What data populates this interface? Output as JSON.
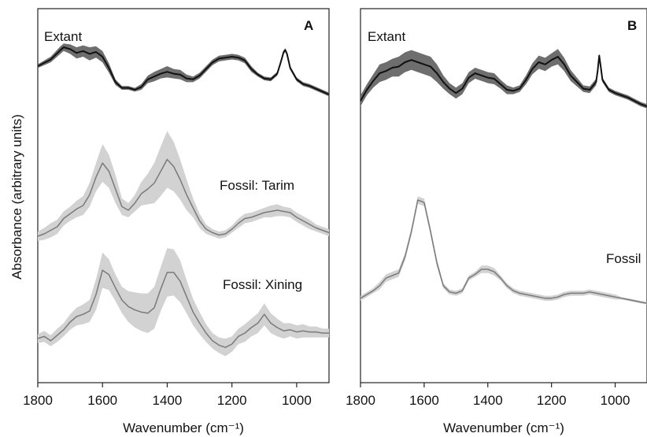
{
  "figure": {
    "ylabel": "Absorbance (arbitrary units)"
  },
  "chart_data": [
    {
      "type": "line",
      "panel_label": "A",
      "xlabel": "Wavenumber (cm⁻¹)",
      "xlim": [
        1800,
        900
      ],
      "xticks": [
        1800,
        1600,
        1400,
        1200,
        1000
      ],
      "grid": false,
      "annotations": [
        "Extant",
        "Fossil: Tarim",
        "Fossil: Xining"
      ],
      "series": [
        {
          "name": "Extant",
          "color": "#111111",
          "band_color": "#6e6e6e",
          "x": [
            1800,
            1760,
            1730,
            1720,
            1700,
            1680,
            1660,
            1640,
            1620,
            1600,
            1580,
            1560,
            1540,
            1520,
            1500,
            1480,
            1460,
            1440,
            1420,
            1400,
            1380,
            1360,
            1340,
            1320,
            1300,
            1280,
            1260,
            1240,
            1220,
            1200,
            1180,
            1160,
            1140,
            1120,
            1100,
            1080,
            1060,
            1050,
            1040,
            1035,
            1030,
            1020,
            1000,
            980,
            960,
            940,
            920,
            900
          ],
          "y": [
            0.8,
            0.87,
            0.97,
            1.0,
            0.98,
            0.94,
            0.96,
            0.93,
            0.95,
            0.9,
            0.78,
            0.63,
            0.57,
            0.57,
            0.55,
            0.58,
            0.66,
            0.69,
            0.72,
            0.74,
            0.72,
            0.71,
            0.67,
            0.66,
            0.7,
            0.77,
            0.84,
            0.88,
            0.89,
            0.9,
            0.89,
            0.86,
            0.77,
            0.71,
            0.67,
            0.66,
            0.72,
            0.83,
            0.95,
            0.97,
            0.93,
            0.78,
            0.66,
            0.61,
            0.59,
            0.56,
            0.53,
            0.5
          ],
          "spread": [
            0.02,
            0.03,
            0.04,
            0.04,
            0.05,
            0.06,
            0.06,
            0.07,
            0.06,
            0.06,
            0.05,
            0.03,
            0.02,
            0.02,
            0.02,
            0.03,
            0.04,
            0.05,
            0.05,
            0.06,
            0.05,
            0.05,
            0.04,
            0.03,
            0.03,
            0.03,
            0.03,
            0.03,
            0.03,
            0.03,
            0.03,
            0.03,
            0.03,
            0.02,
            0.02,
            0.02,
            0.02,
            0.02,
            0.02,
            0.02,
            0.02,
            0.02,
            0.02,
            0.02,
            0.02,
            0.02,
            0.02,
            0.02
          ]
        },
        {
          "name": "Fossil: Tarim",
          "color": "#7a7a7a",
          "band_color": "#d2d2d2",
          "x": [
            1800,
            1780,
            1760,
            1740,
            1720,
            1700,
            1680,
            1660,
            1640,
            1620,
            1600,
            1580,
            1560,
            1540,
            1520,
            1500,
            1480,
            1460,
            1440,
            1420,
            1400,
            1380,
            1360,
            1340,
            1320,
            1300,
            1280,
            1260,
            1240,
            1220,
            1200,
            1180,
            1160,
            1140,
            1120,
            1100,
            1080,
            1060,
            1040,
            1020,
            1000,
            980,
            960,
            940,
            920,
            900
          ],
          "y": [
            0.0,
            0.02,
            0.05,
            0.08,
            0.15,
            0.19,
            0.23,
            0.26,
            0.35,
            0.5,
            0.62,
            0.55,
            0.4,
            0.25,
            0.22,
            0.28,
            0.36,
            0.4,
            0.45,
            0.55,
            0.65,
            0.59,
            0.48,
            0.35,
            0.24,
            0.13,
            0.06,
            0.03,
            0.01,
            0.02,
            0.06,
            0.11,
            0.15,
            0.16,
            0.18,
            0.2,
            0.21,
            0.22,
            0.21,
            0.2,
            0.16,
            0.13,
            0.1,
            0.07,
            0.05,
            0.03
          ],
          "spread": [
            0.04,
            0.05,
            0.06,
            0.06,
            0.06,
            0.06,
            0.07,
            0.08,
            0.1,
            0.12,
            0.16,
            0.14,
            0.12,
            0.07,
            0.06,
            0.07,
            0.1,
            0.13,
            0.17,
            0.21,
            0.24,
            0.21,
            0.17,
            0.13,
            0.08,
            0.06,
            0.04,
            0.03,
            0.03,
            0.03,
            0.03,
            0.04,
            0.04,
            0.04,
            0.04,
            0.04,
            0.05,
            0.05,
            0.04,
            0.04,
            0.04,
            0.04,
            0.04,
            0.03,
            0.03,
            0.03
          ]
        },
        {
          "name": "Fossil: Xining",
          "color": "#7a7a7a",
          "band_color": "#d2d2d2",
          "x": [
            1800,
            1780,
            1760,
            1740,
            1720,
            1700,
            1680,
            1660,
            1640,
            1620,
            1600,
            1580,
            1560,
            1540,
            1520,
            1500,
            1480,
            1460,
            1440,
            1420,
            1400,
            1380,
            1360,
            1340,
            1320,
            1300,
            1280,
            1260,
            1240,
            1220,
            1200,
            1180,
            1160,
            1140,
            1120,
            1100,
            1080,
            1060,
            1040,
            1020,
            1000,
            980,
            960,
            940,
            920,
            900
          ],
          "y": [
            0.0,
            0.02,
            -0.02,
            0.03,
            0.08,
            0.15,
            0.2,
            0.22,
            0.25,
            0.4,
            0.62,
            0.58,
            0.46,
            0.35,
            0.29,
            0.26,
            0.24,
            0.23,
            0.28,
            0.45,
            0.6,
            0.6,
            0.52,
            0.38,
            0.24,
            0.14,
            0.05,
            -0.02,
            -0.06,
            -0.08,
            -0.05,
            0.02,
            0.05,
            0.1,
            0.14,
            0.22,
            0.14,
            0.1,
            0.07,
            0.08,
            0.06,
            0.07,
            0.06,
            0.06,
            0.05,
            0.05
          ],
          "spread": [
            0.04,
            0.05,
            0.05,
            0.06,
            0.06,
            0.07,
            0.08,
            0.09,
            0.1,
            0.14,
            0.16,
            0.14,
            0.12,
            0.12,
            0.14,
            0.16,
            0.17,
            0.18,
            0.19,
            0.2,
            0.22,
            0.21,
            0.19,
            0.15,
            0.12,
            0.1,
            0.08,
            0.07,
            0.07,
            0.08,
            0.07,
            0.07,
            0.08,
            0.08,
            0.09,
            0.1,
            0.09,
            0.08,
            0.07,
            0.06,
            0.06,
            0.06,
            0.05,
            0.05,
            0.04,
            0.04
          ]
        }
      ]
    },
    {
      "type": "line",
      "panel_label": "B",
      "xlabel": "Wavenumber (cm⁻¹)",
      "xlim": [
        1800,
        900
      ],
      "xticks": [
        1800,
        1600,
        1400,
        1200,
        1000
      ],
      "grid": false,
      "annotations": [
        "Extant",
        "Fossil"
      ],
      "series": [
        {
          "name": "Extant",
          "color": "#111111",
          "band_color": "#6e6e6e",
          "x": [
            1800,
            1780,
            1760,
            1740,
            1720,
            1700,
            1680,
            1660,
            1640,
            1620,
            1600,
            1580,
            1560,
            1540,
            1520,
            1500,
            1480,
            1460,
            1440,
            1420,
            1400,
            1380,
            1360,
            1340,
            1320,
            1300,
            1280,
            1260,
            1240,
            1220,
            1200,
            1180,
            1160,
            1140,
            1120,
            1100,
            1080,
            1060,
            1055,
            1050,
            1045,
            1040,
            1020,
            1000,
            980,
            960,
            940,
            920,
            900
          ],
          "y": [
            0.55,
            0.65,
            0.73,
            0.8,
            0.82,
            0.85,
            0.86,
            0.9,
            0.92,
            0.9,
            0.88,
            0.86,
            0.8,
            0.72,
            0.66,
            0.62,
            0.66,
            0.76,
            0.8,
            0.78,
            0.76,
            0.75,
            0.7,
            0.65,
            0.64,
            0.66,
            0.74,
            0.84,
            0.9,
            0.88,
            0.92,
            0.95,
            0.88,
            0.78,
            0.72,
            0.66,
            0.65,
            0.72,
            0.82,
            0.96,
            0.85,
            0.74,
            0.65,
            0.62,
            0.6,
            0.58,
            0.55,
            0.52,
            0.5
          ],
          "spread": [
            0.05,
            0.05,
            0.06,
            0.08,
            0.08,
            0.08,
            0.09,
            0.09,
            0.09,
            0.09,
            0.09,
            0.09,
            0.08,
            0.06,
            0.05,
            0.05,
            0.05,
            0.05,
            0.05,
            0.05,
            0.05,
            0.05,
            0.04,
            0.04,
            0.03,
            0.03,
            0.04,
            0.05,
            0.06,
            0.06,
            0.06,
            0.07,
            0.06,
            0.05,
            0.04,
            0.03,
            0.03,
            0.03,
            0.03,
            0.02,
            0.02,
            0.02,
            0.02,
            0.02,
            0.02,
            0.02,
            0.02,
            0.02,
            0.02
          ]
        },
        {
          "name": "Fossil",
          "color": "#7a7a7a",
          "band_color": "#d2d2d2",
          "x": [
            1800,
            1780,
            1760,
            1740,
            1720,
            1700,
            1680,
            1660,
            1640,
            1620,
            1600,
            1580,
            1560,
            1540,
            1520,
            1500,
            1480,
            1460,
            1440,
            1420,
            1400,
            1380,
            1360,
            1340,
            1320,
            1300,
            1280,
            1260,
            1240,
            1220,
            1200,
            1180,
            1160,
            1140,
            1120,
            1100,
            1080,
            1060,
            1040,
            1020,
            1000,
            980,
            960,
            940,
            920,
            900
          ],
          "y": [
            0.02,
            0.05,
            0.08,
            0.12,
            0.18,
            0.2,
            0.22,
            0.35,
            0.55,
            0.8,
            0.78,
            0.55,
            0.3,
            0.12,
            0.07,
            0.06,
            0.08,
            0.18,
            0.21,
            0.25,
            0.25,
            0.23,
            0.18,
            0.12,
            0.08,
            0.06,
            0.05,
            0.04,
            0.03,
            0.02,
            0.02,
            0.03,
            0.05,
            0.06,
            0.06,
            0.06,
            0.07,
            0.06,
            0.05,
            0.04,
            0.03,
            0.02,
            0.01,
            0.0,
            -0.01,
            -0.02
          ],
          "spread": [
            0.02,
            0.02,
            0.02,
            0.03,
            0.03,
            0.03,
            0.03,
            0.03,
            0.03,
            0.03,
            0.03,
            0.03,
            0.03,
            0.02,
            0.02,
            0.02,
            0.02,
            0.02,
            0.02,
            0.03,
            0.03,
            0.03,
            0.02,
            0.02,
            0.02,
            0.02,
            0.02,
            0.02,
            0.02,
            0.02,
            0.02,
            0.02,
            0.02,
            0.02,
            0.02,
            0.02,
            0.02,
            0.02,
            0.02,
            0.02,
            0.02,
            0.01,
            0.01,
            0.01,
            0.01,
            0.01
          ]
        }
      ]
    }
  ]
}
